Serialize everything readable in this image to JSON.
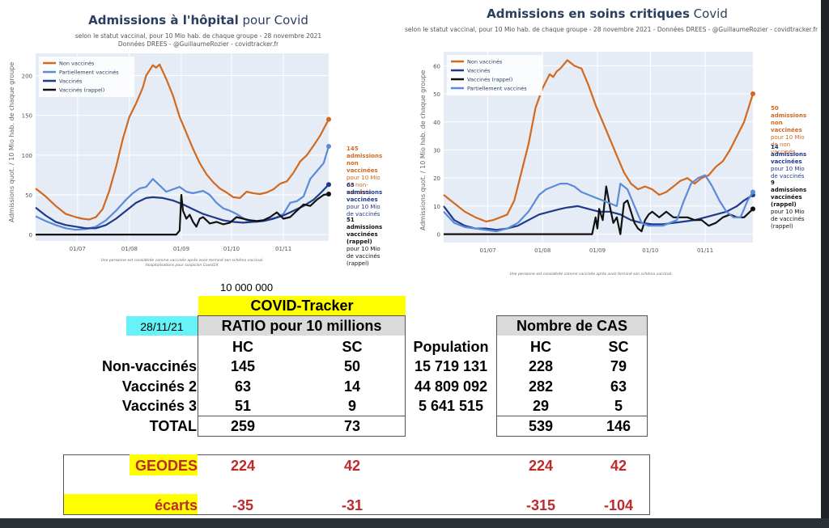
{
  "chart_data": [
    {
      "type": "line",
      "title_bold": "Admissions à l'hôpital",
      "title_rest": " pour Covid",
      "subtitle_lines": [
        "selon le statut vaccinal, pour 10 Mio hab. de chaque groupe - 28 novembre 2021",
        "Données DREES - @GuillaumeRozier - covidtracker.fr"
      ],
      "ylabel": "Admissions quot. / 10 Mio hab. de chaque groupe",
      "xlabel": "",
      "x_ticks": [
        "01/07",
        "01/08",
        "01/09",
        "01/10",
        "01/11"
      ],
      "x_range_days": [
        0,
        175
      ],
      "x_tick_days": [
        25,
        56,
        87,
        117,
        148
      ],
      "y_ticks": [
        0,
        50,
        100,
        150,
        200
      ],
      "ylim": [
        -8,
        228
      ],
      "grid": true,
      "legend_position": "top-left",
      "footnote_lines": [
        "Une personne est considérée comme vaccinée après avoir terminé son schéma vaccinal.",
        "Hospitalisations pour suspicion Covid19."
      ],
      "series": [
        {
          "name": "Non vaccinés",
          "color": "#d2691e",
          "x": [
            0,
            6,
            12,
            18,
            24,
            28,
            32,
            36,
            40,
            44,
            48,
            52,
            56,
            60,
            64,
            66,
            70,
            72,
            74,
            78,
            82,
            86,
            90,
            94,
            98,
            102,
            106,
            110,
            114,
            118,
            122,
            126,
            130,
            134,
            138,
            142,
            146,
            150,
            154,
            158,
            162,
            166,
            170,
            175
          ],
          "y": [
            58,
            48,
            36,
            26,
            22,
            20,
            19,
            22,
            32,
            55,
            85,
            120,
            148,
            165,
            185,
            200,
            213,
            210,
            214,
            196,
            175,
            148,
            128,
            108,
            90,
            76,
            66,
            58,
            53,
            47,
            46,
            54,
            52,
            51,
            53,
            57,
            64,
            67,
            78,
            92,
            100,
            112,
            125,
            145
          ],
          "end_label": "145"
        },
        {
          "name": "Partiellement vaccinés",
          "color": "#5b8bd8",
          "x": [
            0,
            6,
            12,
            18,
            24,
            30,
            36,
            42,
            48,
            54,
            58,
            62,
            66,
            70,
            74,
            78,
            82,
            86,
            90,
            94,
            100,
            104,
            108,
            112,
            116,
            120,
            126,
            132,
            138,
            144,
            148,
            152,
            156,
            160,
            164,
            168,
            172,
            175
          ],
          "y": [
            23,
            17,
            12,
            8,
            6,
            7,
            10,
            18,
            30,
            44,
            52,
            58,
            60,
            70,
            62,
            54,
            57,
            60,
            54,
            52,
            55,
            50,
            40,
            33,
            30,
            26,
            18,
            16,
            18,
            22,
            26,
            40,
            42,
            48,
            70,
            80,
            90,
            111
          ],
          "end_label": "111"
        },
        {
          "name": "Vaccinés",
          "color": "#1f3a8a",
          "x": [
            0,
            6,
            12,
            18,
            24,
            30,
            36,
            42,
            48,
            54,
            60,
            66,
            70,
            76,
            82,
            88,
            94,
            100,
            106,
            112,
            118,
            124,
            130,
            136,
            142,
            148,
            154,
            160,
            166,
            170,
            175
          ],
          "y": [
            34,
            24,
            16,
            12,
            10,
            8,
            8,
            12,
            20,
            30,
            40,
            46,
            47,
            46,
            43,
            38,
            32,
            26,
            22,
            18,
            16,
            15,
            16,
            17,
            20,
            24,
            30,
            36,
            44,
            52,
            63
          ],
          "end_label": "63"
        },
        {
          "name": "Vaccinés (rappel)",
          "color": "#111111",
          "x": [
            0,
            84,
            86,
            87,
            88,
            90,
            92,
            94,
            96,
            98,
            100,
            102,
            104,
            108,
            112,
            116,
            120,
            124,
            128,
            132,
            136,
            140,
            144,
            148,
            152,
            156,
            160,
            164,
            168,
            172,
            175
          ],
          "y": [
            0,
            0,
            5,
            50,
            30,
            20,
            25,
            16,
            10,
            20,
            22,
            18,
            14,
            16,
            13,
            15,
            22,
            20,
            18,
            17,
            18,
            22,
            28,
            20,
            22,
            30,
            38,
            36,
            44,
            50,
            51
          ],
          "end_label": "51"
        }
      ],
      "annotations": [
        {
          "bold": [
            "145 admissions",
            "non vaccinées"
          ],
          "normal": [
            "pour 10 Mio",
            "de non-vaccinés"
          ],
          "color": "#d2691e"
        },
        {
          "bold": [
            "63 admissions",
            "vaccinées"
          ],
          "normal": [
            "pour 10 Mio",
            "de vaccinés"
          ],
          "color": "#1f3a8a"
        },
        {
          "bold": [
            "51 admissions",
            "vaccinées (rappel)"
          ],
          "normal": [
            "pour 10 Mio",
            "de vaccinés (rappel)"
          ],
          "color": "#111111"
        }
      ]
    },
    {
      "type": "line",
      "title_bold": "Admissions en soins critiques",
      "title_rest": " Covid",
      "subtitle_lines": [
        "selon le statut vaccinal, pour 10 Mio hab. de chaque groupe - 28 novembre 2021 - Données DREES - @GuillaumeRozier - covidtracker.fr"
      ],
      "ylabel": "Admissions quot. / 10 Mio hab. de chaque groupe",
      "xlabel": "",
      "x_ticks": [
        "01/07",
        "01/08",
        "01/09",
        "01/10",
        "01/11"
      ],
      "x_range_days": [
        0,
        175
      ],
      "x_tick_days": [
        25,
        56,
        87,
        117,
        148
      ],
      "y_ticks": [
        0,
        10,
        20,
        30,
        40,
        50,
        60
      ],
      "ylim": [
        -3,
        65
      ],
      "grid": true,
      "legend_position": "top-left",
      "footnote_lines": [
        "Une personne est considérée comme vaccinée après avoir terminé son schéma vaccinal."
      ],
      "series": [
        {
          "name": "Non vaccinés",
          "color": "#d2691e",
          "x": [
            0,
            6,
            12,
            18,
            24,
            28,
            32,
            36,
            40,
            44,
            48,
            52,
            56,
            60,
            62,
            64,
            66,
            70,
            74,
            78,
            82,
            86,
            90,
            94,
            98,
            102,
            106,
            110,
            114,
            118,
            122,
            126,
            130,
            134,
            138,
            142,
            146,
            150,
            154,
            158,
            162,
            166,
            170,
            175
          ],
          "y": [
            14,
            11,
            8,
            6,
            4.5,
            5,
            6,
            7,
            12,
            22,
            32,
            45,
            52,
            57,
            56,
            58,
            59,
            62,
            60,
            59,
            53,
            46,
            40,
            34,
            28,
            22,
            18,
            16,
            17,
            16,
            14,
            15,
            17,
            19,
            20,
            18,
            20,
            21,
            24,
            26,
            30,
            35,
            40,
            50
          ],
          "end_label": "50"
        },
        {
          "name": "Vaccinés",
          "color": "#1f3a8a",
          "x": [
            0,
            6,
            12,
            18,
            24,
            30,
            36,
            42,
            48,
            54,
            60,
            66,
            70,
            76,
            82,
            88,
            94,
            100,
            106,
            112,
            118,
            124,
            130,
            136,
            142,
            148,
            154,
            160,
            166,
            170,
            175
          ],
          "y": [
            10,
            5,
            3,
            2,
            2,
            1.5,
            2,
            3,
            5,
            7,
            8,
            9,
            9.5,
            10,
            9,
            8,
            8,
            7,
            5,
            4,
            3.5,
            3.5,
            4,
            4.5,
            5,
            6,
            7,
            8,
            10,
            12,
            14
          ],
          "end_label": "14"
        },
        {
          "name": "Vaccinés (rappel)",
          "color": "#111111",
          "x": [
            0,
            84,
            86,
            87,
            88,
            90,
            92,
            94,
            96,
            98,
            100,
            102,
            104,
            106,
            108,
            110,
            112,
            114,
            116,
            118,
            122,
            126,
            130,
            134,
            138,
            142,
            146,
            150,
            154,
            158,
            162,
            166,
            170,
            175
          ],
          "y": [
            0,
            0,
            6,
            2,
            9,
            5,
            17,
            10,
            4,
            6,
            0,
            11,
            12,
            8,
            4,
            2,
            1,
            5,
            7,
            8,
            6,
            8,
            6,
            6,
            6,
            5,
            5,
            3,
            4,
            6,
            7,
            6,
            6,
            9
          ],
          "end_label": "9"
        },
        {
          "name": "Partiellement vaccinés",
          "color": "#5b8bd8",
          "x": [
            0,
            6,
            12,
            18,
            24,
            30,
            36,
            42,
            48,
            54,
            58,
            62,
            66,
            70,
            74,
            78,
            82,
            86,
            90,
            94,
            98,
            100,
            104,
            108,
            112,
            116,
            120,
            124,
            128,
            132,
            136,
            140,
            144,
            148,
            152,
            156,
            160,
            164,
            168,
            172,
            175
          ],
          "y": [
            8,
            4,
            2.5,
            2,
            1.5,
            1,
            2,
            4,
            8,
            14,
            16,
            17,
            18,
            18,
            17,
            15,
            14,
            13,
            12,
            11,
            10,
            18,
            16,
            10,
            4,
            3,
            3,
            3,
            4,
            5,
            12,
            18,
            20,
            21,
            17,
            12,
            8,
            6,
            6,
            12,
            15
          ],
          "end_label": "15"
        }
      ],
      "annotations": [
        {
          "bold": [
            "50 admissions",
            "non vaccinées"
          ],
          "normal": [
            "pour 10 Mio",
            "de non vaccinés"
          ],
          "color": "#d2691e"
        },
        {
          "bold": [
            "14 admissions",
            "vaccinées"
          ],
          "normal": [
            "pour 10 Mio",
            "de vaccinés"
          ],
          "color": "#1f3a8a"
        },
        {
          "bold": [
            "9 admissions",
            "vaccinées (rappel)"
          ],
          "normal": [
            "pour 10 Mio",
            "de vaccinés (rappel)"
          ],
          "color": "#111111"
        }
      ]
    }
  ],
  "table": {
    "ratio_base": "10 000 000",
    "tracker_label": "COVID-Tracker",
    "date": "28/11/21",
    "ratio_header": "RATIO pour 10 millions",
    "cas_header": "Nombre de CAS",
    "col_hc": "HC",
    "col_sc": "SC",
    "col_population": "Population",
    "rows": [
      {
        "label": "Non-vaccinés",
        "ratio_hc": "145",
        "ratio_sc": "50",
        "population": "15 719 131",
        "cas_hc": "228",
        "cas_sc": "79"
      },
      {
        "label": "Vaccinés 2",
        "ratio_hc": "63",
        "ratio_sc": "14",
        "population": "44 809 092",
        "cas_hc": "282",
        "cas_sc": "63"
      },
      {
        "label": "Vaccinés 3",
        "ratio_hc": "51",
        "ratio_sc": "9",
        "population": "5 641 515",
        "cas_hc": "29",
        "cas_sc": "5"
      }
    ],
    "total": {
      "label": "TOTAL",
      "ratio_hc": "259",
      "ratio_sc": "73",
      "cas_hc": "539",
      "cas_sc": "146"
    },
    "geodes": {
      "label": "GEODES",
      "ratio_hc": "224",
      "ratio_sc": "42",
      "cas_hc": "224",
      "cas_sc": "42"
    },
    "ecarts": {
      "label": "écarts",
      "ratio_hc": "-35",
      "ratio_sc": "-31",
      "cas_hc": "-315",
      "cas_sc": "-104"
    },
    "colors": {
      "yellow": "#ffff00",
      "cyan": "#66f2f7",
      "header_gray": "#dadada",
      "red": "#c0292b"
    }
  }
}
